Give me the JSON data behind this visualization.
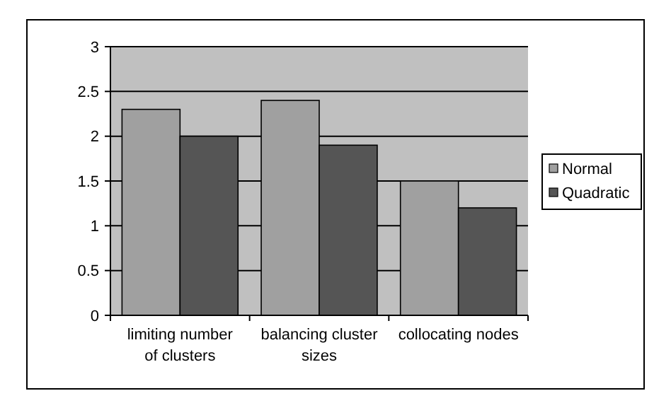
{
  "chart_data": {
    "type": "bar",
    "categories": [
      "limiting number of clusters",
      "balancing cluster sizes",
      "collocating nodes"
    ],
    "series": [
      {
        "name": "Normal",
        "color": "#a0a0a0",
        "values": [
          2.3,
          2.4,
          1.5
        ]
      },
      {
        "name": "Quadratic",
        "color": "#555555",
        "values": [
          2.0,
          1.9,
          1.2
        ]
      }
    ],
    "ylim": [
      0,
      3
    ],
    "yticks": [
      0,
      0.5,
      1,
      1.5,
      2,
      2.5,
      3
    ],
    "grid": "y",
    "legend": "right"
  }
}
